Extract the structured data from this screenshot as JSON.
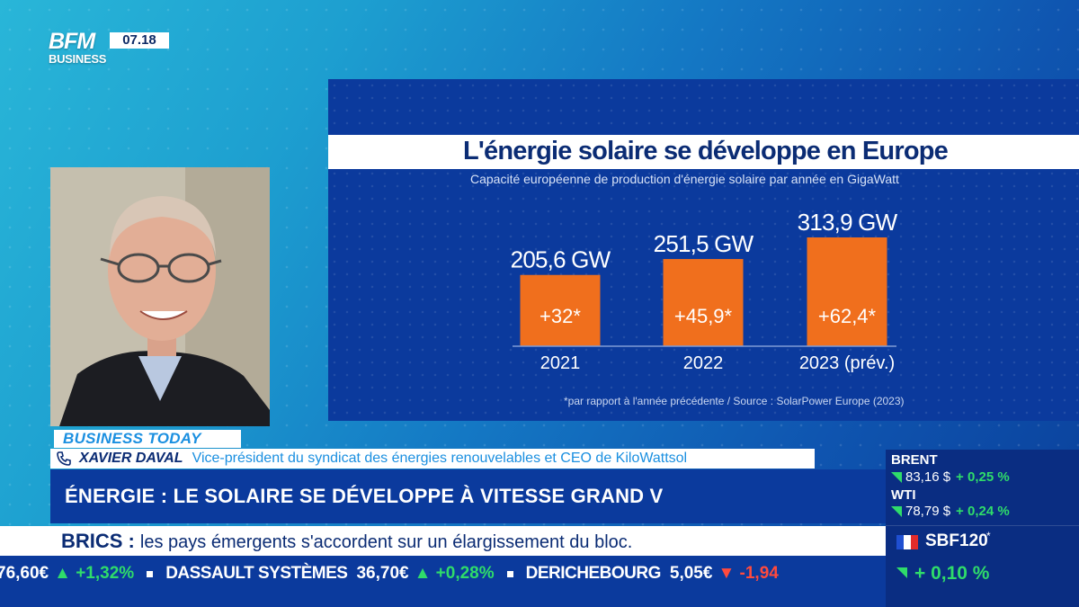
{
  "channel": {
    "logo_line1": "BFM",
    "logo_line2": "BUSINESS",
    "time": "07.18"
  },
  "chart_data": {
    "type": "bar",
    "title": "L'énergie solaire se développe en Europe",
    "subtitle": "Capacité européenne de production d'énergie solaire par année en GigaWatt",
    "categories": [
      "2021",
      "2022",
      "2023 (prév.)"
    ],
    "values": [
      205.6,
      251.5,
      313.9
    ],
    "value_labels": [
      "205,6 GW",
      "251,5 GW",
      "313,9 GW"
    ],
    "increase_labels": [
      "+32*",
      "+45,9*",
      "+62,4*"
    ],
    "increases": [
      32,
      45.9,
      62.4
    ],
    "footnote": "*par rapport à l'année précédente / Source : SolarPower Europe (2023)",
    "xlabel": "",
    "ylabel": "",
    "ylim": [
      0,
      400
    ],
    "grid": false,
    "colors": {
      "bar": "#f06f1d",
      "background": "#0b3a9d"
    }
  },
  "lower_third": {
    "show": "BUSINESS TODAY",
    "guest_name": "XAVIER DAVAL",
    "guest_role": "Vice-président du syndicat des énergies renouvelables et CEO de KiloWattsol",
    "headline": "ÉNERGIE : LE SOLAIRE SE DÉVELOPPE À VITESSE GRAND V"
  },
  "breaking": {
    "keyword": "BRICS :",
    "text": "les pays émergents s'accordent sur un élargissement du bloc."
  },
  "ticker": [
    {
      "name": "",
      "value": "76,60€",
      "change": "+1,32%",
      "direction": "up"
    },
    {
      "name": "DASSAULT SYSTÈMES",
      "value": "36,70€",
      "change": "+0,28%",
      "direction": "up"
    },
    {
      "name": "DERICHEBOURG",
      "value": "5,05€",
      "change": "-1,94",
      "direction": "down"
    }
  ],
  "markets": {
    "brent_label": "BRENT",
    "brent_value": "83,16 $",
    "brent_change": "+ 0,25 %",
    "wti_label": "WTI",
    "wti_value": "78,79 $",
    "wti_change": "+ 0,24 %",
    "index_name": "SBF120",
    "index_star": "*",
    "index_change": "+ 0,10 %"
  },
  "colors": {
    "accent_orange": "#f06f1d",
    "navy": "#0b3a9d",
    "up_green": "#2fdc6a",
    "down_red": "#ff4a3d"
  }
}
